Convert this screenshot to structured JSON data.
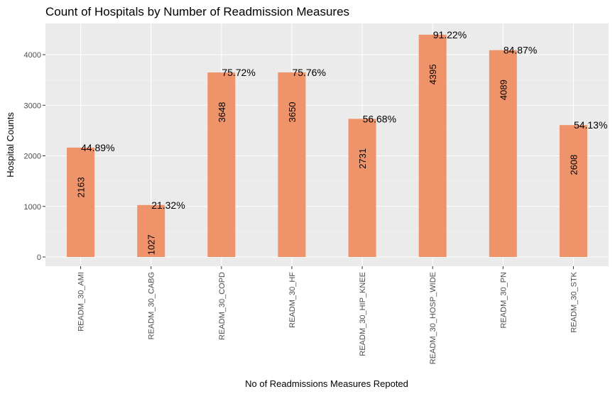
{
  "chart_data": {
    "type": "bar",
    "title": "Count of Hospitals by Number of Readmission Measures",
    "xlabel": "No of Readmissions Measures Repoted",
    "ylabel": "Hospital Counts",
    "categories": [
      "READM_30_AMI",
      "READM_30_CABG",
      "READM_30_COPD",
      "READM_30_HF",
      "READM_30_HIP_KNEE",
      "READM_30_HOSP_WIDE",
      "READM_30_PN",
      "READM_30_STK"
    ],
    "values": [
      2163,
      1027,
      3648,
      3650,
      2731,
      4395,
      4089,
      2608
    ],
    "value_labels": [
      "2163",
      "1027",
      "3648",
      "3650",
      "2731",
      "4395",
      "4089",
      "2608"
    ],
    "percent_labels": [
      "44.89%",
      "21.32%",
      "75.72%",
      "75.76%",
      "56.68%",
      "91.22%",
      "84.87%",
      "54.13%"
    ],
    "ylim": [
      0,
      4500
    ],
    "yticks": [
      0,
      1000,
      2000,
      3000,
      4000
    ],
    "ytick_labels": [
      "0",
      "1000",
      "2000",
      "3000",
      "4000"
    ],
    "grid": true,
    "legend": "none",
    "colors": {
      "bar": "#ef946a",
      "panel": "#ebebeb",
      "grid_major": "#ffffff",
      "grid_minor": "#f5f5f5"
    }
  }
}
